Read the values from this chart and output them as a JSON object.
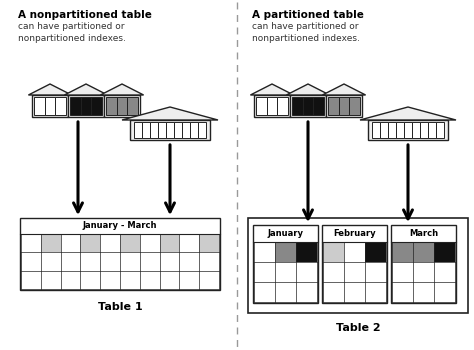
{
  "bg_color": "#ffffff",
  "title_left_bold": "A nonpartitioned table",
  "title_left_sub": "can have partitioned or\nnonpartitioned indexes.",
  "title_right_bold": "A partitioned table",
  "title_right_sub": "can have partitioned or\nnonpartitioned indexes.",
  "table1_label": "Table 1",
  "table2_label": "Table 2",
  "table1_month": "January - March",
  "months": [
    "January",
    "February",
    "March"
  ],
  "outline_color": "#222222",
  "fill_house": "#eeeeee",
  "fill_white": "#ffffff",
  "fill_dark": "#111111",
  "fill_gray": "#888888",
  "fill_lgray": "#cccccc",
  "div_color": "#999999",
  "left_house3_cols": [
    "#ffffff",
    "#ffffff",
    "#ffffff",
    "#111111",
    "#111111",
    "#111111",
    "#888888",
    "#888888",
    "#888888"
  ],
  "right_house3_cols": [
    "#ffffff",
    "#ffffff",
    "#ffffff",
    "#111111",
    "#111111",
    "#111111",
    "#888888",
    "#888888",
    "#888888"
  ],
  "left_idx_cols": [
    "#ffffff",
    "#ffffff",
    "#ffffff",
    "#ffffff",
    "#ffffff",
    "#ffffff",
    "#ffffff",
    "#ffffff",
    "#ffffff"
  ],
  "right_idx_cols": [
    "#ffffff",
    "#ffffff",
    "#ffffff",
    "#ffffff",
    "#ffffff",
    "#ffffff",
    "#ffffff",
    "#ffffff",
    "#ffffff"
  ],
  "table1_grid_cols": 10,
  "table1_col_colors": [
    "#ffffff",
    "#cccccc",
    "#ffffff",
    "#cccccc",
    "#ffffff",
    "#cccccc",
    "#ffffff",
    "#cccccc",
    "#ffffff",
    "#cccccc"
  ],
  "jan_col_colors": [
    "#ffffff",
    "#888888",
    "#111111"
  ],
  "feb_col_colors": [
    "#cccccc",
    "#ffffff",
    "#111111"
  ],
  "mar_col_colors": [
    "#888888",
    "#888888",
    "#111111"
  ]
}
